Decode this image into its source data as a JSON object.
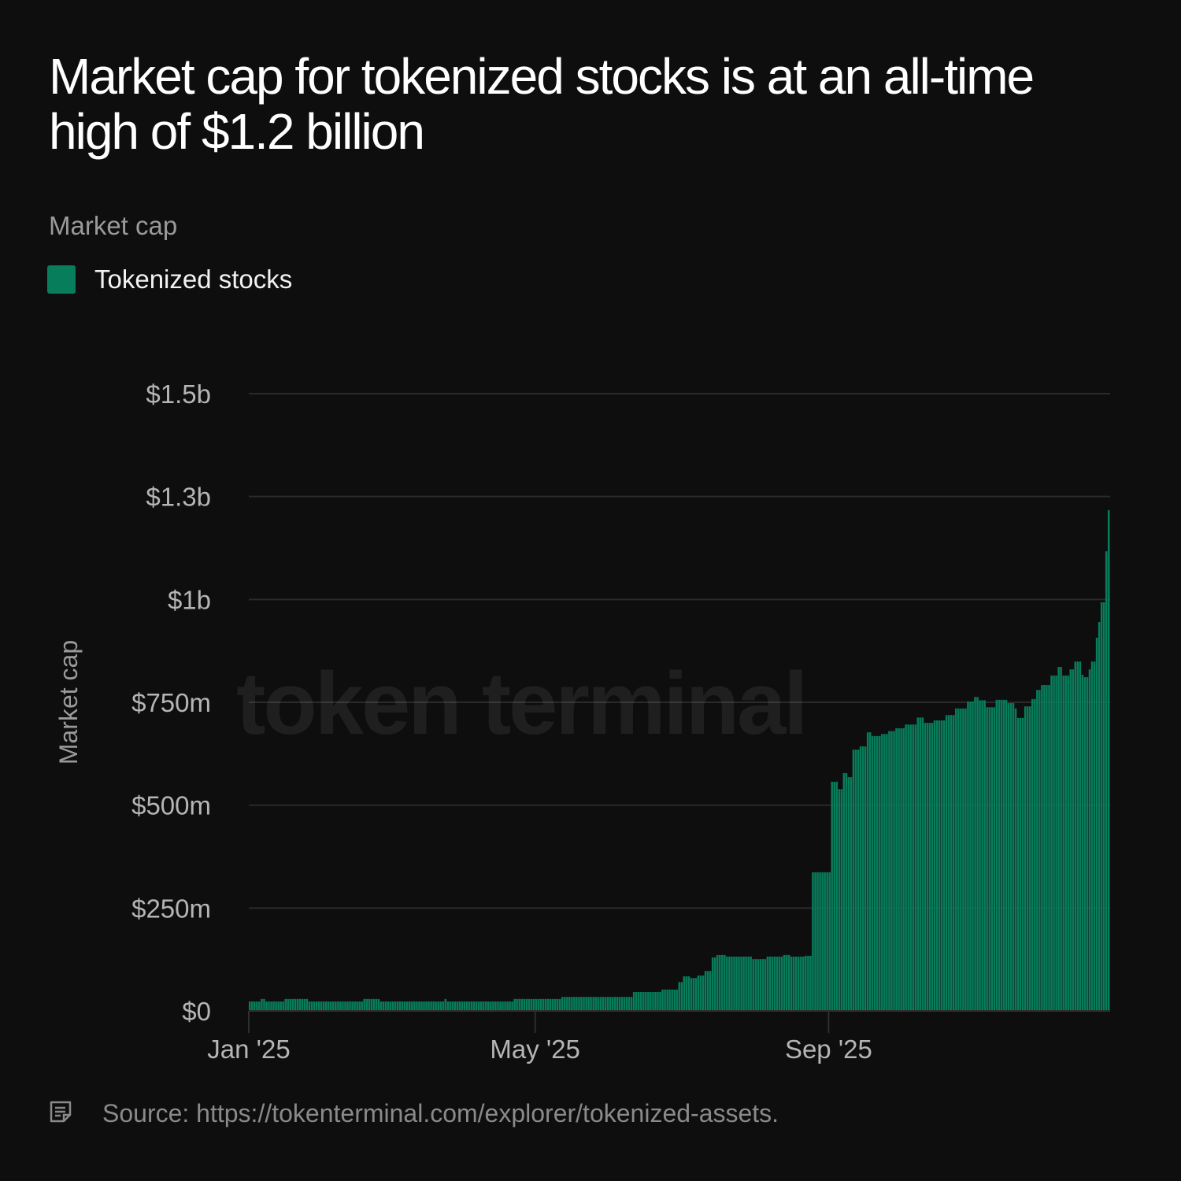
{
  "chart_data": {
    "type": "bar",
    "title": "Market cap for tokenized stocks is at an all-time high of $1.2 billion",
    "subtitle": "Market cap",
    "ylabel": "Market cap",
    "xlabel": "",
    "ylim": [
      0,
      1500
    ],
    "y_unit": "$m",
    "y_ticks": [
      0,
      250,
      500,
      750,
      1000,
      1250,
      1500
    ],
    "y_tick_labels": [
      "$0",
      "$250m",
      "$500m",
      "$750m",
      "$1b",
      "$1.3b",
      "$1.5b"
    ],
    "x_ticks": [
      "2025-01-01",
      "2025-05-01",
      "2025-09-01"
    ],
    "x_tick_labels": [
      "Jan '25",
      "May '25",
      "Sep '25"
    ],
    "x_range": [
      "2025-01-01",
      "2025-12-27"
    ],
    "grid": "horizontal",
    "legend_placement": "top-left",
    "series": [
      {
        "name": "Tokenized stocks",
        "color": "#077d5b",
        "note": "daily bars; value holds from each date until the next",
        "x": [
          "2025-01-01",
          "2025-01-06",
          "2025-01-08",
          "2025-01-16",
          "2025-01-26",
          "2025-02-18",
          "2025-02-25",
          "2025-03-24",
          "2025-03-25",
          "2025-04-22",
          "2025-05-12",
          "2025-06-11",
          "2025-06-23",
          "2025-06-30",
          "2025-07-02",
          "2025-07-05",
          "2025-07-08",
          "2025-07-11",
          "2025-07-14",
          "2025-07-16",
          "2025-07-20",
          "2025-07-31",
          "2025-08-06",
          "2025-08-13",
          "2025-08-16",
          "2025-08-22",
          "2025-08-25",
          "2025-09-02",
          "2025-09-05",
          "2025-09-07",
          "2025-09-09",
          "2025-09-11",
          "2025-09-14",
          "2025-09-17",
          "2025-09-19",
          "2025-09-23",
          "2025-09-26",
          "2025-09-29",
          "2025-10-03",
          "2025-10-08",
          "2025-10-11",
          "2025-10-15",
          "2025-10-20",
          "2025-10-24",
          "2025-10-29",
          "2025-11-01",
          "2025-11-03",
          "2025-11-06",
          "2025-11-10",
          "2025-11-15",
          "2025-11-18",
          "2025-11-19",
          "2025-11-22",
          "2025-11-25",
          "2025-11-27",
          "2025-11-29",
          "2025-12-03",
          "2025-12-06",
          "2025-12-08",
          "2025-12-11",
          "2025-12-13",
          "2025-12-16",
          "2025-12-17",
          "2025-12-19",
          "2025-12-20",
          "2025-12-22",
          "2025-12-23",
          "2025-12-24",
          "2025-12-26",
          "2025-12-27"
        ],
        "values": [
          23,
          29,
          23,
          29,
          23,
          29,
          23,
          29,
          23,
          29,
          34,
          46,
          52,
          70,
          84,
          80,
          86,
          97,
          130,
          136,
          132,
          126,
          132,
          136,
          132,
          134,
          337,
          557,
          539,
          578,
          568,
          635,
          643,
          677,
          668,
          673,
          680,
          687,
          696,
          713,
          700,
          706,
          719,
          735,
          752,
          763,
          755,
          738,
          756,
          748,
          735,
          712,
          740,
          758,
          780,
          792,
          815,
          836,
          815,
          830,
          849,
          817,
          811,
          830,
          849,
          907,
          945,
          993,
          1117,
          1217
        ]
      }
    ]
  },
  "watermark": "token terminal",
  "footer": {
    "icon": "note-icon",
    "source": "Source: https://tokenterminal.com/explorer/tokenized-assets."
  },
  "colors": {
    "background": "#0e0e0e",
    "bar": "#077d5b",
    "grid": "#2a2a2a"
  }
}
